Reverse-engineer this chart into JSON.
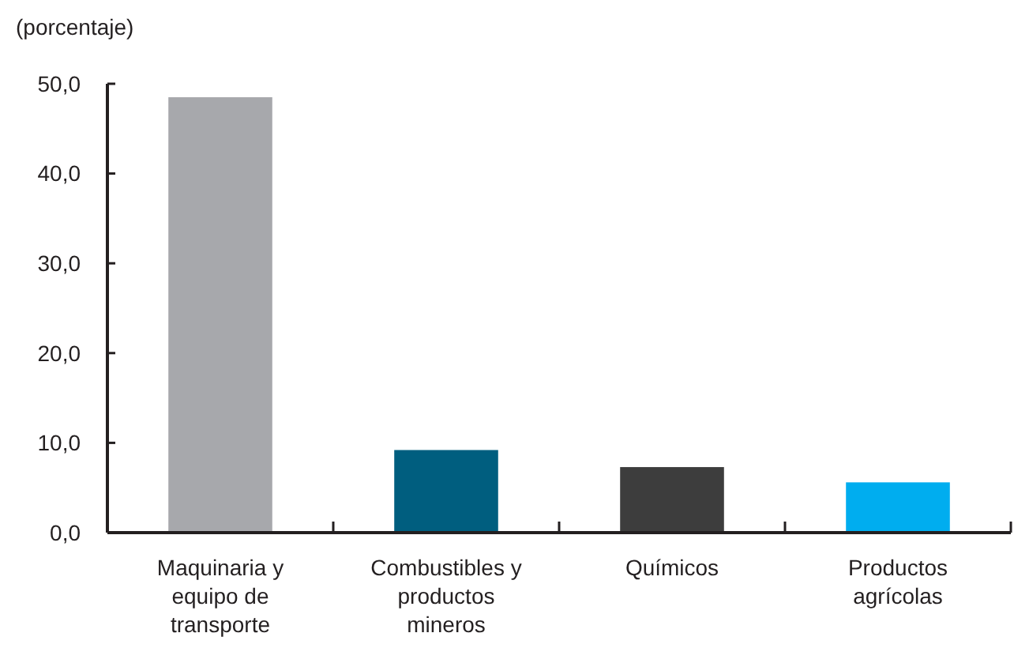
{
  "chart_data": {
    "type": "bar",
    "ylabel": "(porcentaje)",
    "categories": [
      "Maquinaria y equipo de transporte",
      "Combustibles y productos mineros",
      "Químicos",
      "Productos agrícolas"
    ],
    "values": [
      48.5,
      9.2,
      7.3,
      5.6
    ],
    "colors": [
      "#a7a8ac",
      "#005e7f",
      "#3d3d3d",
      "#00adef"
    ],
    "ylim": [
      0,
      50
    ],
    "yticks": [
      {
        "value": 0,
        "label": "0,0"
      },
      {
        "value": 10,
        "label": "10,0"
      },
      {
        "value": 20,
        "label": "20,0"
      },
      {
        "value": 30,
        "label": "30,0"
      },
      {
        "value": 40,
        "label": "40,0"
      },
      {
        "value": 50,
        "label": "50,0"
      }
    ],
    "grid": false
  }
}
